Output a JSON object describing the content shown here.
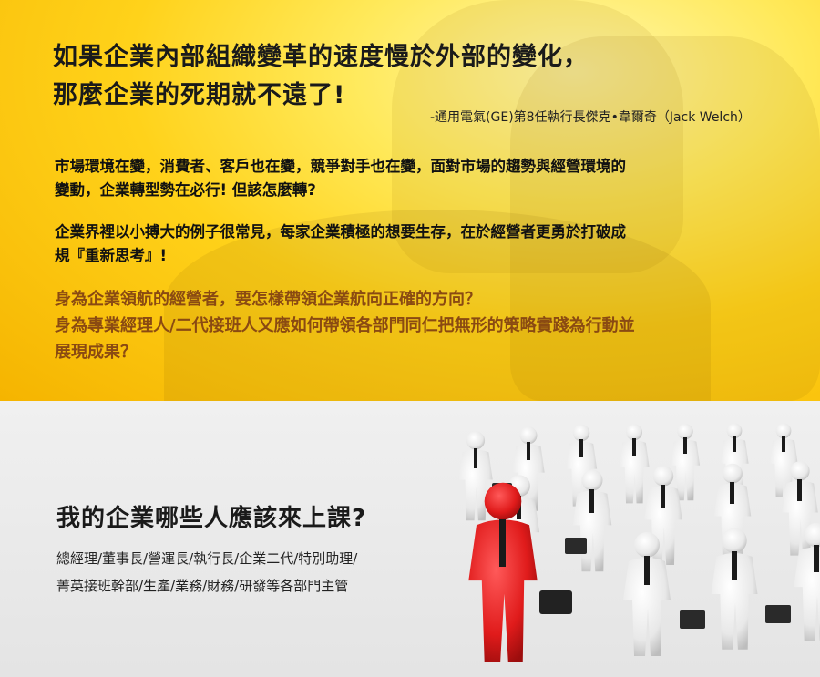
{
  "headline": {
    "line1": "如果企業內部組織變革的速度慢於外部的變化，",
    "line2": "那麼企業的死期就不遠了!"
  },
  "attribution": "-通用電氣(GE)第8任執行長傑克•韋爾奇（Jack Welch）",
  "paragraphs": [
    {
      "line1": "市場環境在變，消費者、客戶也在變，競爭對手也在變，面對市場的趨勢與經營環境的",
      "line2": "變動，企業轉型勢在必行! 但該怎麼轉?"
    },
    {
      "line1": "企業界裡以小搏大的例子很常見，每家企業積極的想要生存，在於經營者更勇於打破成",
      "line2": "規『重新思考』!"
    }
  ],
  "questions": {
    "line1": "身為企業領航的經營者，要怎樣帶領企業航向正確的方向？",
    "line2": "身為專業經理人/二代接班人又應如何帶領各部門同仁把無形的策略實踐為行動並",
    "line3": "展現成果？"
  },
  "audience": {
    "title": "我的企業哪些人應該來上課?",
    "line1": "總經理/董事長/營運長/執行長/企業二代/特別助理/",
    "line2": "菁英接班幹部/生產/業務/財務/研發等各部門主管"
  },
  "colors": {
    "yellow_bg": "#ffd21a",
    "question_text": "#8a4a12",
    "leader_figure": "#e01b1b",
    "crowd_figure": "#f4f4f4",
    "tie": "#1a1a1a"
  }
}
